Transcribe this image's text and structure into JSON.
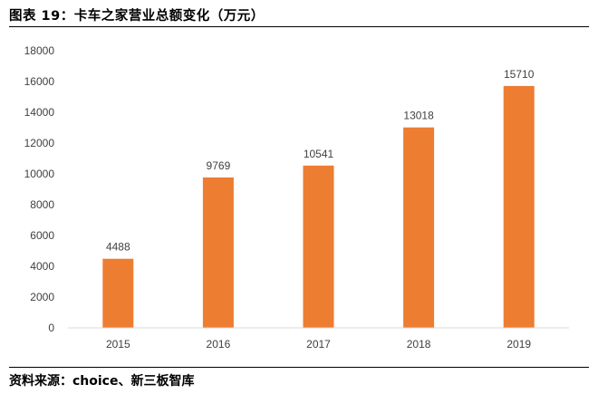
{
  "title": "图表 19：卡车之家营业总额变化（万元）",
  "source": "资料来源：choice、新三板智库",
  "chart_data": {
    "type": "bar",
    "categories": [
      "2015",
      "2016",
      "2017",
      "2018",
      "2019"
    ],
    "values": [
      4488,
      9769,
      10541,
      13018,
      15710
    ],
    "data_labels": [
      "4488",
      "9769",
      "10541",
      "13018",
      "15710"
    ],
    "ylim": [
      0,
      18000
    ],
    "yticks": [
      "0",
      "2000",
      "4000",
      "6000",
      "8000",
      "10000",
      "12000",
      "14000",
      "16000",
      "18000"
    ],
    "grid": false,
    "bar_color": "#ED7D31",
    "axis_color": "#D9D9D9"
  }
}
